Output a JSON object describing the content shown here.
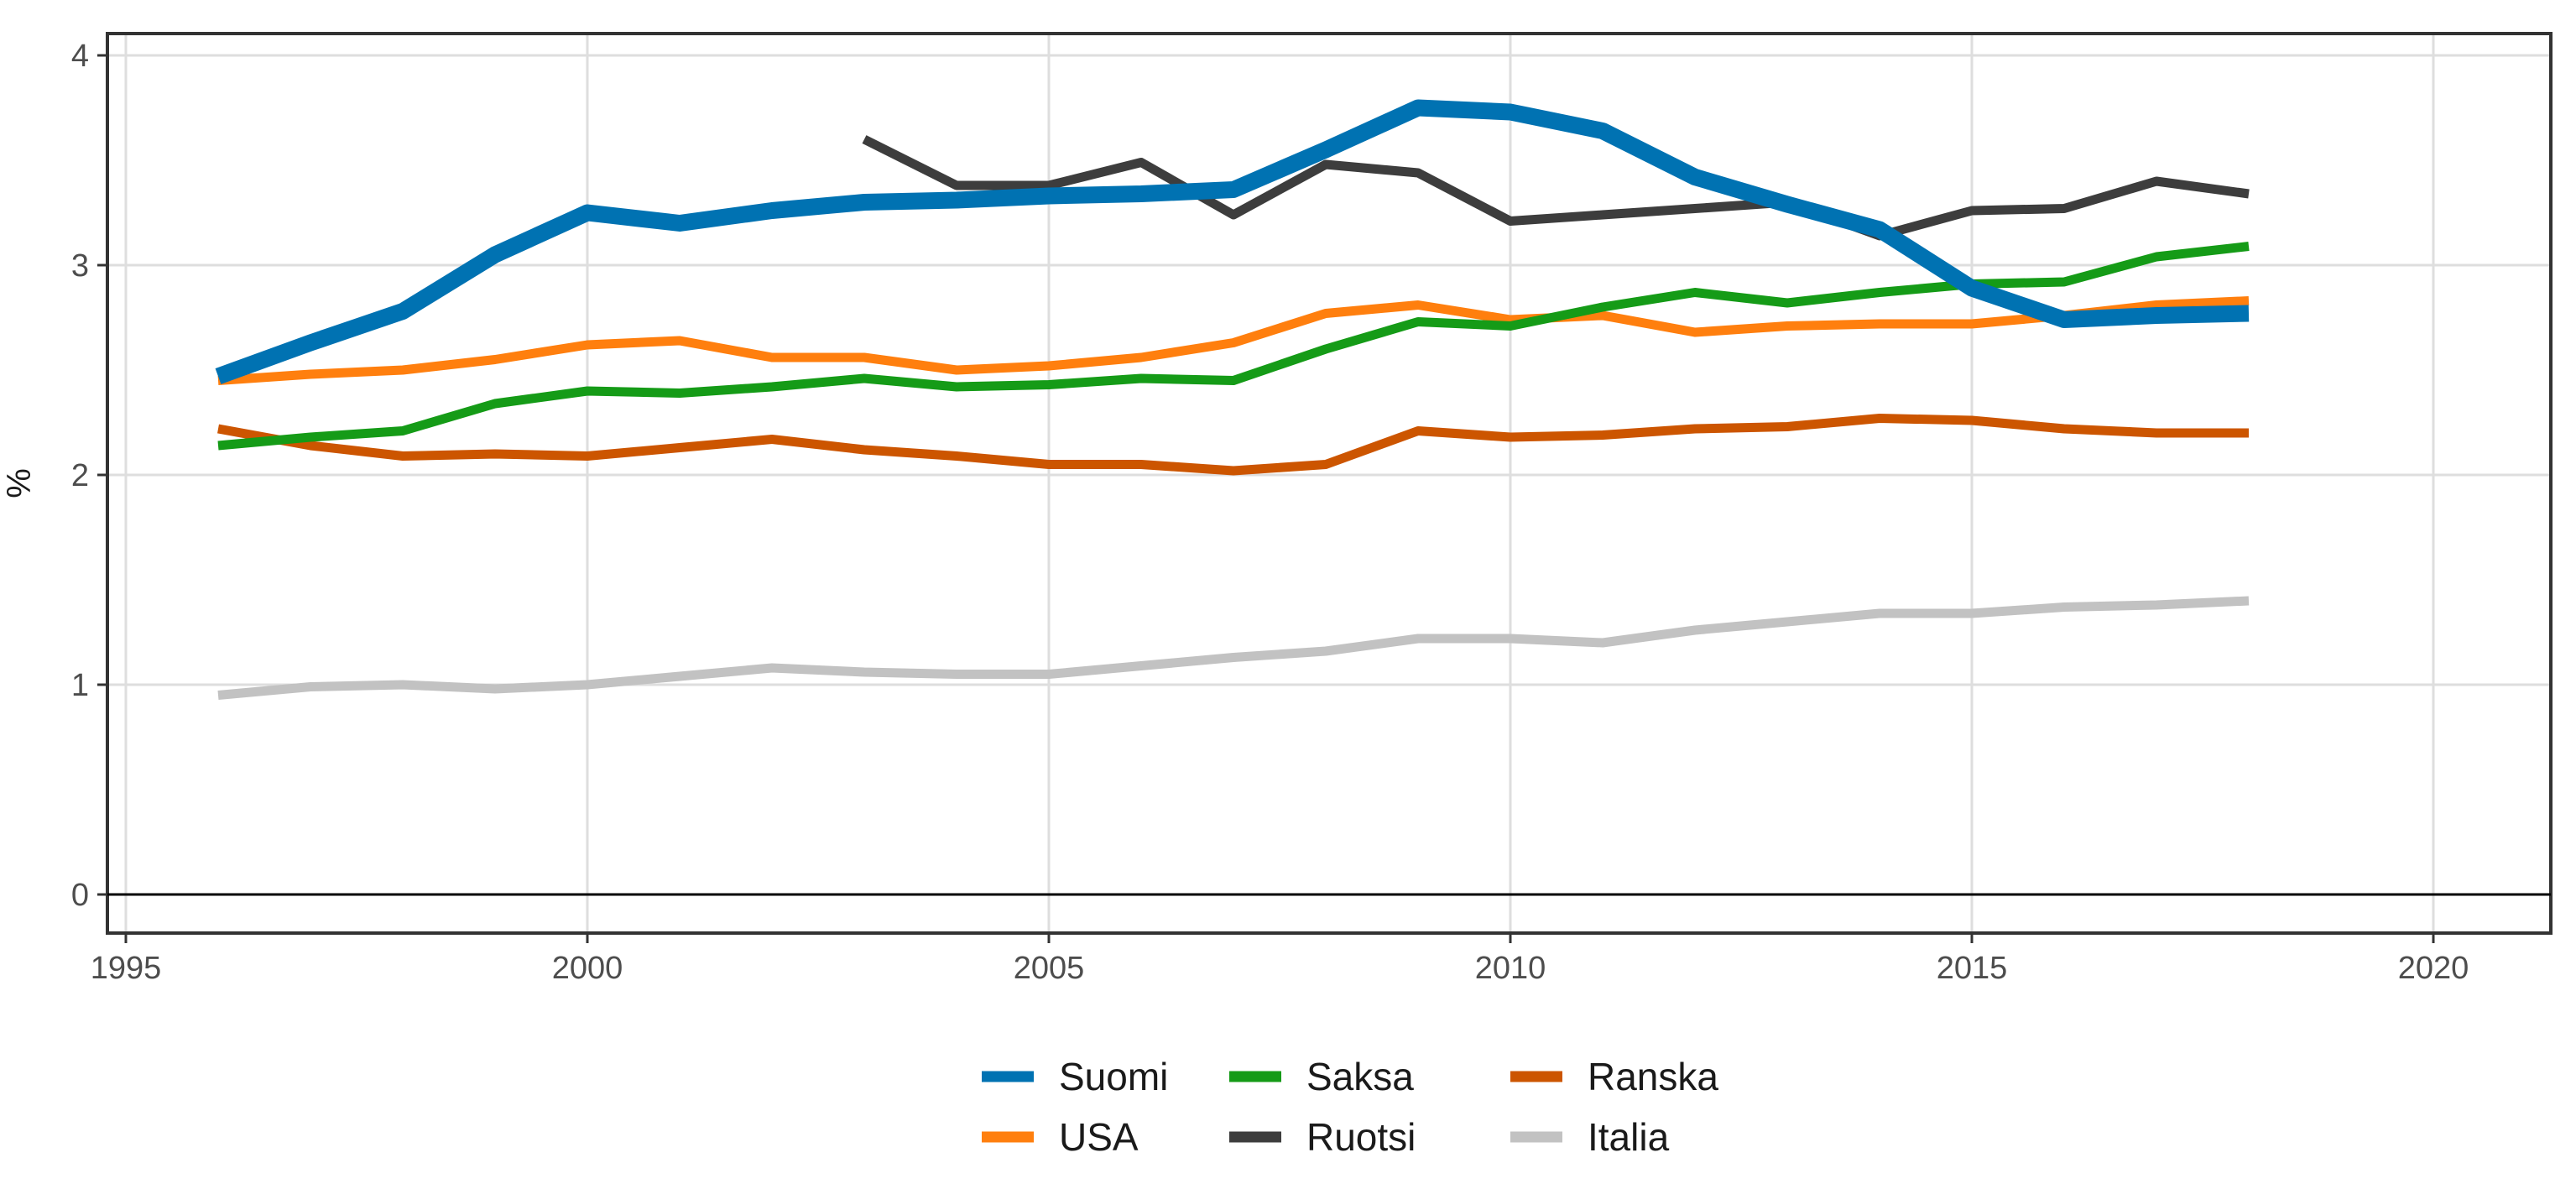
{
  "chart_data": {
    "type": "line",
    "xlabel": "",
    "ylabel": "%",
    "xlim": [
      1995,
      2020
    ],
    "ylim": [
      0,
      4
    ],
    "x_ticks": [
      1995,
      2000,
      2005,
      2010,
      2015,
      2020
    ],
    "y_ticks": [
      0,
      1,
      2,
      3,
      4
    ],
    "grid": true,
    "legend_position": "bottom",
    "series": [
      {
        "name": "Suomi",
        "color": "#0072B2",
        "emphasis": true,
        "x": [
          1996,
          1997,
          1998,
          1999,
          2000,
          2001,
          2002,
          2003,
          2004,
          2005,
          2006,
          2007,
          2008,
          2009,
          2010,
          2011,
          2012,
          2013,
          2014,
          2015,
          2016,
          2017,
          2018
        ],
        "values": [
          2.47,
          2.63,
          2.78,
          3.05,
          3.25,
          3.2,
          3.26,
          3.3,
          3.31,
          3.33,
          3.34,
          3.36,
          3.55,
          3.75,
          3.73,
          3.64,
          3.42,
          3.29,
          3.17,
          2.89,
          2.74,
          2.76,
          2.77
        ]
      },
      {
        "name": "USA",
        "color": "#FF7F0E",
        "x": [
          1996,
          1997,
          1998,
          1999,
          2000,
          2001,
          2002,
          2003,
          2004,
          2005,
          2006,
          2007,
          2008,
          2009,
          2010,
          2011,
          2012,
          2013,
          2014,
          2015,
          2016,
          2017,
          2018
        ],
        "values": [
          2.45,
          2.48,
          2.5,
          2.55,
          2.62,
          2.64,
          2.56,
          2.56,
          2.5,
          2.52,
          2.56,
          2.63,
          2.77,
          2.81,
          2.74,
          2.76,
          2.68,
          2.71,
          2.72,
          2.72,
          2.76,
          2.81,
          2.83
        ]
      },
      {
        "name": "Saksa",
        "color": "#159B17",
        "x": [
          1996,
          1997,
          1998,
          1999,
          2000,
          2001,
          2002,
          2003,
          2004,
          2005,
          2006,
          2007,
          2008,
          2009,
          2010,
          2011,
          2012,
          2013,
          2014,
          2015,
          2016,
          2017,
          2018
        ],
        "values": [
          2.14,
          2.18,
          2.21,
          2.34,
          2.4,
          2.39,
          2.42,
          2.46,
          2.42,
          2.43,
          2.46,
          2.45,
          2.6,
          2.73,
          2.71,
          2.8,
          2.87,
          2.82,
          2.87,
          2.91,
          2.92,
          3.04,
          3.09
        ]
      },
      {
        "name": "Ruotsi",
        "color": "#3D3D3D",
        "x": [
          2003,
          2004,
          2005,
          2006,
          2007,
          2008,
          2009,
          2010,
          2011,
          2012,
          2013,
          2014,
          2015,
          2016,
          2017,
          2018
        ],
        "values": [
          3.6,
          3.38,
          3.38,
          3.49,
          3.24,
          3.48,
          3.44,
          3.21,
          3.24,
          3.27,
          3.3,
          3.14,
          3.26,
          3.27,
          3.4,
          3.34
        ]
      },
      {
        "name": "Ranska",
        "color": "#CC5500",
        "x": [
          1996,
          1997,
          1998,
          1999,
          2000,
          2001,
          2002,
          2003,
          2004,
          2005,
          2006,
          2007,
          2008,
          2009,
          2010,
          2011,
          2012,
          2013,
          2014,
          2015,
          2016,
          2017,
          2018
        ],
        "values": [
          2.22,
          2.14,
          2.09,
          2.1,
          2.09,
          2.13,
          2.17,
          2.12,
          2.09,
          2.05,
          2.05,
          2.02,
          2.05,
          2.21,
          2.18,
          2.19,
          2.22,
          2.23,
          2.27,
          2.26,
          2.22,
          2.2,
          2.2
        ]
      },
      {
        "name": "Italia",
        "color": "#C2C2C2",
        "x": [
          1996,
          1997,
          1998,
          1999,
          2000,
          2001,
          2002,
          2003,
          2004,
          2005,
          2006,
          2007,
          2008,
          2009,
          2010,
          2011,
          2012,
          2013,
          2014,
          2015,
          2016,
          2017,
          2018
        ],
        "values": [
          0.95,
          0.99,
          1.0,
          0.98,
          1.0,
          1.04,
          1.08,
          1.06,
          1.05,
          1.05,
          1.09,
          1.13,
          1.16,
          1.22,
          1.22,
          1.2,
          1.26,
          1.3,
          1.34,
          1.34,
          1.37,
          1.38,
          1.4
        ]
      }
    ],
    "legend_order": [
      "Suomi",
      "Saksa",
      "Ranska",
      "USA",
      "Ruotsi",
      "Italia"
    ]
  }
}
